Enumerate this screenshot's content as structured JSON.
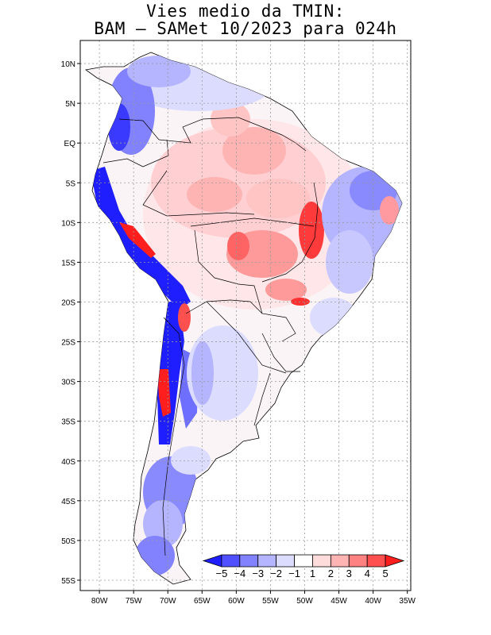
{
  "title": {
    "line1": "Vies medio da TMIN:",
    "line2": "BAM – SAMet 10/2023  para 024h"
  },
  "axes": {
    "lat_labels": [
      "10N",
      "5N",
      "EQ",
      "5S",
      "10S",
      "15S",
      "20S",
      "25S",
      "30S",
      "35S",
      "40S",
      "45S",
      "50S",
      "55S"
    ],
    "lat_values": [
      10,
      5,
      0,
      -5,
      -10,
      -15,
      -20,
      -25,
      -30,
      -35,
      -40,
      -45,
      -50,
      -55
    ],
    "lon_labels": [
      "80W",
      "75W",
      "70W",
      "65W",
      "60W",
      "55W",
      "50W",
      "45W",
      "40W",
      "35W"
    ],
    "lon_values": [
      -80,
      -75,
      -70,
      -65,
      -60,
      -55,
      -50,
      -45,
      -40,
      -35
    ]
  },
  "colorbar": {
    "labels": [
      "−5",
      "−4",
      "−3",
      "−2",
      "−1",
      "1",
      "2",
      "3",
      "4",
      "5"
    ],
    "colors": [
      "#1e1eff",
      "#5050ff",
      "#8282ff",
      "#b4b4ff",
      "#dcdcff",
      "#ffffff",
      "#ffdcdc",
      "#ffb4b4",
      "#ff8282",
      "#ff5050",
      "#ff1e1e"
    ]
  },
  "map_colors": {
    "land_base": "#ffffff",
    "cold_light": "#dcdcff",
    "cold_mid": "#b4b4ff",
    "cold_strong": "#6e6eff",
    "cold_extreme": "#1e1eff",
    "warm_light": "#ffdcdc",
    "warm_mid": "#ffb4b4",
    "warm_strong": "#ff6464",
    "warm_extreme": "#ff1e1e",
    "grid": "#9a9a9a"
  }
}
